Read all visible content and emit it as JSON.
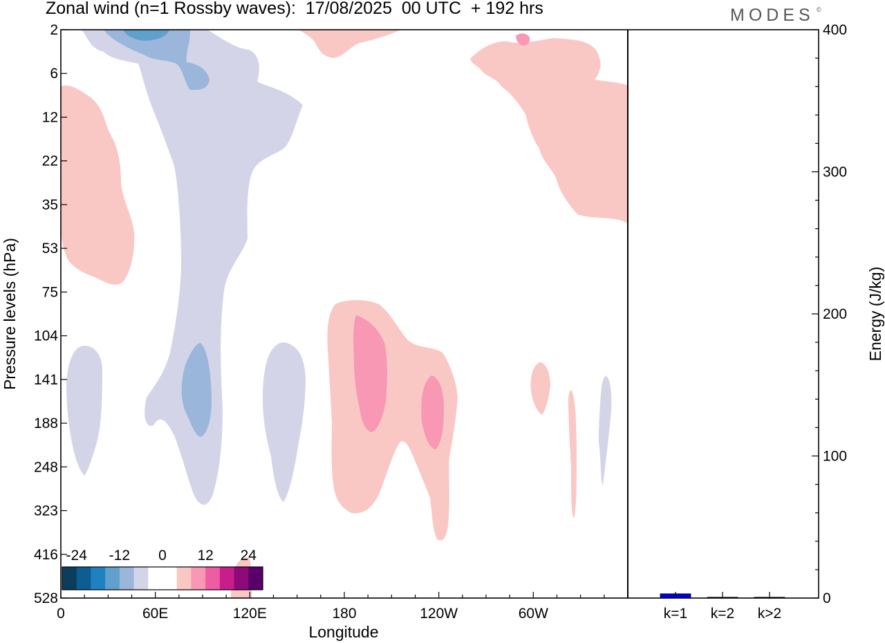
{
  "header": {
    "title": "Zonal wind (n=1 Rossby waves):  17/08/2025  00 UTC  + 192 hrs",
    "brand": "MODES",
    "brand_mark": "©"
  },
  "chart_data": [
    {
      "type": "heatmap",
      "title": "Zonal wind (n=1 Rossby waves):  17/08/2025  00 UTC  + 192 hrs",
      "xlabel": "Longitude",
      "ylabel": "Pressure levels (hPa)",
      "x_ticks": [
        "0",
        "60E",
        "120E",
        "180",
        "120W",
        "60W"
      ],
      "y_ticks": [
        "2",
        "6",
        "12",
        "22",
        "35",
        "53",
        "75",
        "104",
        "141",
        "188",
        "248",
        "323",
        "416",
        "528"
      ],
      "colorbar": {
        "labels": [
          "-24",
          "-12",
          "0",
          "12",
          "24"
        ],
        "colors": [
          "#0b3d5c",
          "#0b5d92",
          "#1f82c0",
          "#5fa0cc",
          "#9ab6da",
          "#d3d4e8",
          "#ffffff",
          "#ffffff",
          "#f9c8c4",
          "#f898b4",
          "#ee5ca4",
          "#c81e8c",
          "#8e0a78",
          "#5a006a"
        ]
      },
      "shading": [
        {
          "id": "neg-left-upper",
          "color": "#d3d4e8"
        },
        {
          "id": "neg-top-mid",
          "color": "#9ab6da"
        },
        {
          "id": "neg-top-core",
          "color": "#5fa0cc"
        },
        {
          "id": "neg-60e-core",
          "color": "#9ab6da"
        },
        {
          "id": "neg-15e",
          "color": "#d3d4e8"
        },
        {
          "id": "neg-140e",
          "color": "#d3d4e8"
        },
        {
          "id": "neg-75w",
          "color": "#d3d4e8"
        },
        {
          "id": "pos-left",
          "color": "#f9c8c4"
        },
        {
          "id": "pos-top-170w",
          "color": "#f9c8c4"
        },
        {
          "id": "pos-top-right",
          "color": "#f9c8c4"
        },
        {
          "id": "pos-top-right-core",
          "color": "#f898b4"
        },
        {
          "id": "pos-lower-mid",
          "color": "#f9c8c4"
        },
        {
          "id": "pos-lower-core-a",
          "color": "#f898b4"
        },
        {
          "id": "pos-lower-core-b",
          "color": "#f898b4"
        },
        {
          "id": "pos-60w",
          "color": "#f9c8c4"
        },
        {
          "id": "pos-85w",
          "color": "#f9c8c4"
        },
        {
          "id": "pos-bottom-110e",
          "color": "#f9c8c4"
        }
      ]
    },
    {
      "type": "bar",
      "categories": [
        "k=1",
        "k=2",
        "k>2"
      ],
      "values": [
        3,
        0.3,
        0.5
      ],
      "ylabel": "Energy (J/kg)",
      "ylim": [
        0,
        400
      ],
      "y_ticks": [
        "0",
        "100",
        "200",
        "300",
        "400"
      ],
      "bar_colors": [
        "#0000dd",
        "#000000",
        "#000000"
      ]
    }
  ]
}
